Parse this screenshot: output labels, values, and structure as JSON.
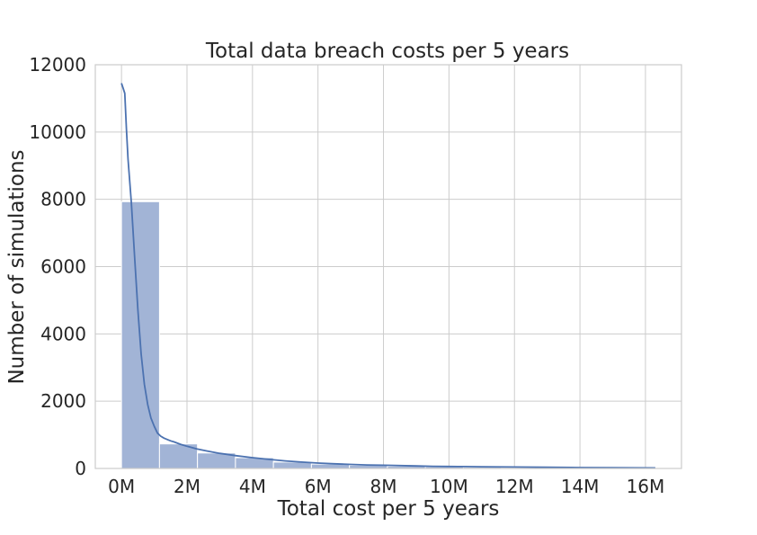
{
  "chart_data": {
    "type": "bar",
    "subtype": "histogram-with-kde",
    "title": "Total data breach costs per 5 years",
    "xlabel": "Total cost per 5 years",
    "ylabel": "Number of simulations",
    "xlim": [
      -0.8,
      17.1
    ],
    "ylim": [
      0,
      12000
    ],
    "x_unit": "M",
    "x_ticks": [
      0,
      2,
      4,
      6,
      8,
      10,
      12,
      14,
      16
    ],
    "x_tick_labels": [
      "0M",
      "2M",
      "4M",
      "6M",
      "8M",
      "10M",
      "12M",
      "14M",
      "16M"
    ],
    "y_ticks": [
      0,
      2000,
      4000,
      6000,
      8000,
      10000,
      12000
    ],
    "y_tick_labels": [
      "0",
      "2000",
      "4000",
      "6000",
      "8000",
      "10000",
      "12000"
    ],
    "grid": true,
    "bin_edges": [
      0,
      1.16,
      2.32,
      3.48,
      4.64,
      5.8,
      6.96,
      8.12,
      9.28,
      10.44,
      11.6,
      12.76,
      13.92,
      15.08,
      16.24
    ],
    "values": [
      7930,
      730,
      460,
      320,
      190,
      130,
      95,
      65,
      50,
      35,
      25,
      18,
      12,
      8
    ],
    "bar_color": "#a2b4d6",
    "bar_edge_color": "#ffffff",
    "kde_color": "#4c72b0",
    "kde": {
      "x": [
        0,
        0.05,
        0.1,
        0.15,
        0.2,
        0.3,
        0.4,
        0.5,
        0.6,
        0.7,
        0.8,
        0.9,
        1.0,
        1.1,
        1.2,
        1.3,
        1.4,
        1.5,
        1.6,
        1.8,
        2.0,
        2.3,
        2.6,
        3.0,
        3.5,
        4.0,
        4.5,
        5.0,
        5.5,
        6.0,
        6.5,
        7.0,
        7.5,
        8.0,
        8.5,
        9.0,
        9.5,
        10.0,
        10.5,
        11.0,
        12.0,
        13.0,
        14.0,
        15.0,
        16.3
      ],
      "y": [
        11450,
        11300,
        11150,
        10100,
        9200,
        7900,
        6300,
        4700,
        3400,
        2500,
        1900,
        1500,
        1250,
        1050,
        960,
        900,
        860,
        820,
        790,
        720,
        660,
        580,
        520,
        450,
        380,
        320,
        270,
        225,
        190,
        160,
        140,
        120,
        105,
        95,
        85,
        75,
        65,
        60,
        55,
        50,
        42,
        35,
        28,
        22,
        15
      ]
    }
  }
}
